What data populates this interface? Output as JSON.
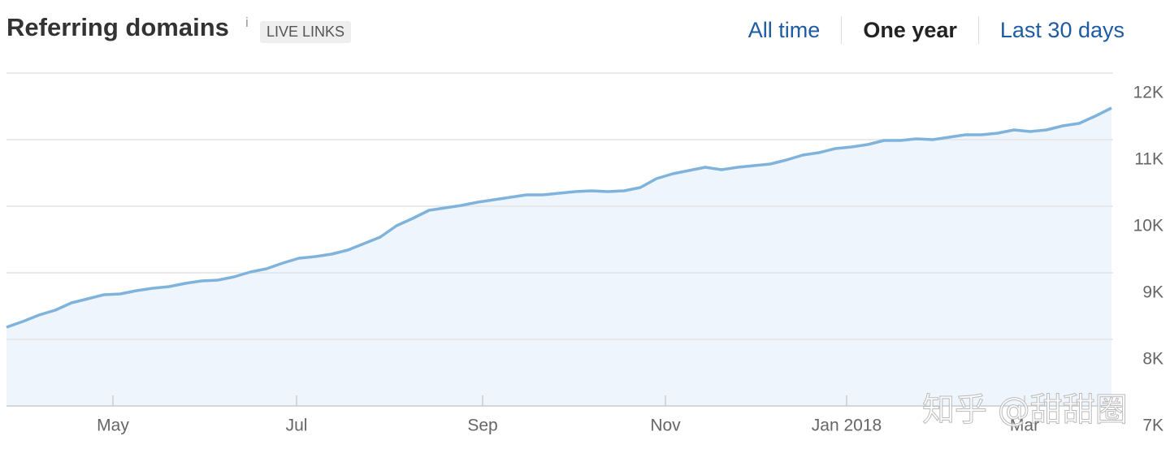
{
  "header": {
    "title": "Referring domains",
    "info": "i",
    "badge": "LIVE LINKS",
    "tabs": [
      {
        "label": "All time",
        "active": false
      },
      {
        "label": "One year",
        "active": true
      },
      {
        "label": "Last 30 days",
        "active": false
      }
    ]
  },
  "watermark": "知乎 @甜甜圈",
  "chart_data": {
    "type": "area",
    "color": "#7fb3dc",
    "fill": "#eef5fc",
    "grid": true,
    "values": [
      8183,
      8268,
      8366,
      8439,
      8549,
      8610,
      8671,
      8683,
      8732,
      8768,
      8793,
      8841,
      8878,
      8890,
      8939,
      9012,
      9061,
      9146,
      9220,
      9244,
      9280,
      9341,
      9439,
      9537,
      9707,
      9817,
      9939,
      9976,
      10012,
      10061,
      10098,
      10134,
      10171,
      10171,
      10195,
      10220,
      10232,
      10220,
      10232,
      10280,
      10415,
      10488,
      10537,
      10585,
      10549,
      10585,
      10610,
      10634,
      10695,
      10768,
      10805,
      10866,
      10890,
      10927,
      10988,
      10988,
      11012,
      11000,
      11037,
      11073,
      11073,
      11098,
      11146,
      11122,
      11146,
      11207,
      11244,
      11354,
      11476
    ],
    "xlim": [
      0,
      68
    ],
    "xticks": [
      {
        "value": 6.55,
        "label": "May"
      },
      {
        "value": 17.85,
        "label": "Jul"
      },
      {
        "value": 29.3,
        "label": "Sep"
      },
      {
        "value": 40.55,
        "label": "Nov"
      },
      {
        "value": 51.7,
        "label": "Jan 2018"
      },
      {
        "value": 62.65,
        "label": "Mar"
      }
    ],
    "ylim": [
      7000,
      12000
    ],
    "yticks": [
      {
        "value": 7000,
        "label": "7K"
      },
      {
        "value": 8000,
        "label": "8K"
      },
      {
        "value": 9000,
        "label": "9K"
      },
      {
        "value": 10000,
        "label": "10K"
      },
      {
        "value": 11000,
        "label": "11K"
      },
      {
        "value": 12000,
        "label": "12K"
      }
    ]
  }
}
